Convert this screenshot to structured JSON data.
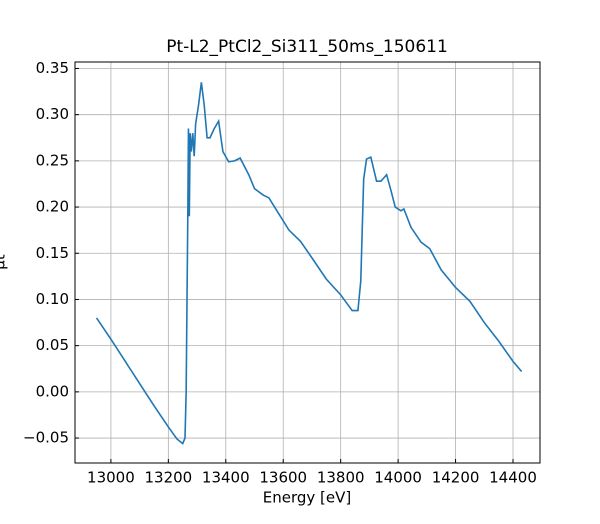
{
  "chart_data": {
    "type": "line",
    "title": "Pt-L2_PtCl2_Si311_50ms_150611",
    "xlabel": "Energy [eV]",
    "ylabel": "μt",
    "x": [
      12950,
      13000,
      13050,
      13100,
      13150,
      13200,
      13230,
      13250,
      13258,
      13262,
      13265,
      13268,
      13270,
      13273,
      13276,
      13280,
      13285,
      13290,
      13295,
      13305,
      13315,
      13325,
      13335,
      13345,
      13360,
      13375,
      13390,
      13410,
      13430,
      13450,
      13480,
      13500,
      13530,
      13550,
      13580,
      13620,
      13660,
      13700,
      13750,
      13800,
      13840,
      13860,
      13870,
      13880,
      13890,
      13905,
      13925,
      13940,
      13960,
      13975,
      13990,
      14010,
      14020,
      14045,
      14080,
      14110,
      14150,
      14200,
      14250,
      14300,
      14350,
      14400,
      14430
    ],
    "series": [
      {
        "name": "μt",
        "color": "#1f77b4",
        "values": [
          0.08,
          0.057,
          0.033,
          0.009,
          -0.015,
          -0.038,
          -0.051,
          -0.056,
          -0.05,
          0.0,
          0.1,
          0.2,
          0.285,
          0.19,
          0.28,
          0.26,
          0.28,
          0.255,
          0.29,
          0.31,
          0.335,
          0.31,
          0.275,
          0.275,
          0.285,
          0.293,
          0.26,
          0.249,
          0.25,
          0.253,
          0.235,
          0.22,
          0.213,
          0.21,
          0.195,
          0.175,
          0.163,
          0.145,
          0.122,
          0.105,
          0.088,
          0.088,
          0.12,
          0.23,
          0.252,
          0.254,
          0.228,
          0.228,
          0.235,
          0.218,
          0.2,
          0.196,
          0.198,
          0.178,
          0.162,
          0.155,
          0.132,
          0.113,
          0.098,
          0.075,
          0.055,
          0.033,
          0.022
        ]
      }
    ],
    "xlim": [
      12875,
      14494
    ],
    "ylim": [
      -0.077,
      0.357
    ],
    "xticks": [
      13000,
      13200,
      13400,
      13600,
      13800,
      14000,
      14200,
      14400
    ],
    "yticks": [
      {
        "value": -0.05,
        "label": "−0.05"
      },
      {
        "value": 0,
        "label": "0.00"
      },
      {
        "value": 0.05,
        "label": "0.05"
      },
      {
        "value": 0.1,
        "label": "0.10"
      },
      {
        "value": 0.15,
        "label": "0.15"
      },
      {
        "value": 0.2,
        "label": "0.20"
      },
      {
        "value": 0.25,
        "label": "0.25"
      },
      {
        "value": 0.3,
        "label": "0.30"
      },
      {
        "value": 0.35,
        "label": "0.35"
      }
    ],
    "grid": true
  }
}
